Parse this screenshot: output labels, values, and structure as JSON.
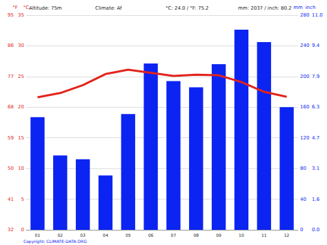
{
  "chart_data": {
    "type": "bar",
    "categories": [
      "01",
      "02",
      "03",
      "04",
      "05",
      "06",
      "07",
      "08",
      "09",
      "10",
      "11",
      "12"
    ],
    "series": [
      {
        "type": "bar",
        "axis": "y2",
        "color": "#0b24f2",
        "values": [
          147,
          97,
          92,
          71,
          151,
          217,
          194,
          186,
          216,
          261,
          245,
          160
        ]
      },
      {
        "type": "line",
        "color": "#e3231b",
        "values": [
          21.6,
          22.3,
          23.6,
          25.4,
          26.1,
          25.6,
          25.1,
          25.3,
          25.2,
          24.1,
          22.5,
          21.7
        ]
      }
    ],
    "ylabel": "°C",
    "ylim": [
      0,
      35
    ],
    "yticks": [
      0,
      5,
      10,
      15,
      20,
      25,
      30,
      35
    ],
    "y_alt": {
      "label": "°F",
      "ticks": [
        {
          "value": 0,
          "label": "32"
        },
        {
          "value": 5,
          "label": "41"
        },
        {
          "value": 10,
          "label": "50"
        },
        {
          "value": 15,
          "label": "59"
        },
        {
          "value": 20,
          "label": "68"
        },
        {
          "value": 25,
          "label": "77"
        },
        {
          "value": 30,
          "label": "86"
        },
        {
          "value": 35,
          "label": "95"
        }
      ]
    },
    "y2label": "mm",
    "y2lim": [
      0,
      280
    ],
    "y2ticks": [
      0,
      40,
      80,
      120,
      160,
      200,
      240,
      280
    ],
    "y2_alt": {
      "label": "inch",
      "ticks": [
        {
          "value": 0,
          "label": "0.0"
        },
        {
          "value": 40,
          "label": "1.6"
        },
        {
          "value": 80,
          "label": "3.1"
        },
        {
          "value": 120,
          "label": "4.7"
        },
        {
          "value": 160,
          "label": "6.3"
        },
        {
          "value": 200,
          "label": "7.9"
        },
        {
          "value": 240,
          "label": "9.4"
        },
        {
          "value": 280,
          "label": "11.0"
        }
      ]
    },
    "annotations": [
      "Altitude: 75m",
      "Climate: Af",
      "°C: 24.0 / °F: 75.2",
      "mm: 2037 / inch: 80.2"
    ],
    "source": "Copyright: CLIMATE-DATA.ORG",
    "grid": true
  }
}
